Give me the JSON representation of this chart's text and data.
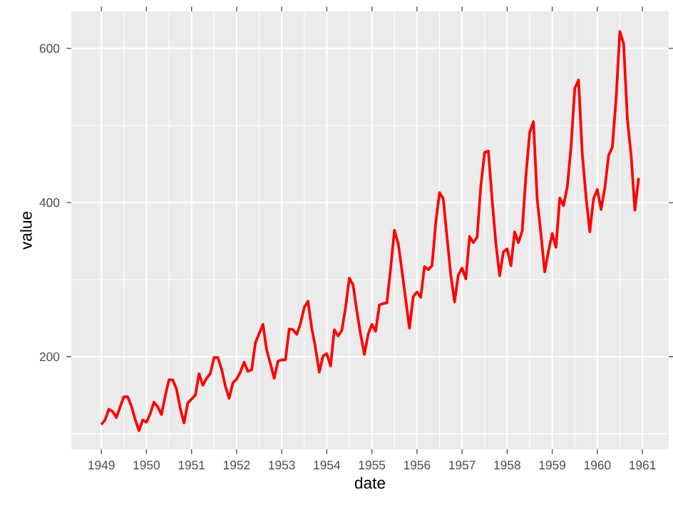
{
  "chart_data": {
    "type": "line",
    "xlabel": "date",
    "ylabel": "value",
    "color": "#ff0000",
    "grid": true,
    "x": [
      "1949-01",
      "1949-02",
      "1949-03",
      "1949-04",
      "1949-05",
      "1949-06",
      "1949-07",
      "1949-08",
      "1949-09",
      "1949-10",
      "1949-11",
      "1949-12",
      "1950-01",
      "1950-02",
      "1950-03",
      "1950-04",
      "1950-05",
      "1950-06",
      "1950-07",
      "1950-08",
      "1950-09",
      "1950-10",
      "1950-11",
      "1950-12",
      "1951-01",
      "1951-02",
      "1951-03",
      "1951-04",
      "1951-05",
      "1951-06",
      "1951-07",
      "1951-08",
      "1951-09",
      "1951-10",
      "1951-11",
      "1951-12",
      "1952-01",
      "1952-02",
      "1952-03",
      "1952-04",
      "1952-05",
      "1952-06",
      "1952-07",
      "1952-08",
      "1952-09",
      "1952-10",
      "1952-11",
      "1952-12",
      "1953-01",
      "1953-02",
      "1953-03",
      "1953-04",
      "1953-05",
      "1953-06",
      "1953-07",
      "1953-08",
      "1953-09",
      "1953-10",
      "1953-11",
      "1953-12",
      "1954-01",
      "1954-02",
      "1954-03",
      "1954-04",
      "1954-05",
      "1954-06",
      "1954-07",
      "1954-08",
      "1954-09",
      "1954-10",
      "1954-11",
      "1954-12",
      "1955-01",
      "1955-02",
      "1955-03",
      "1955-04",
      "1955-05",
      "1955-06",
      "1955-07",
      "1955-08",
      "1955-09",
      "1955-10",
      "1955-11",
      "1955-12",
      "1956-01",
      "1956-02",
      "1956-03",
      "1956-04",
      "1956-05",
      "1956-06",
      "1956-07",
      "1956-08",
      "1956-09",
      "1956-10",
      "1956-11",
      "1956-12",
      "1957-01",
      "1957-02",
      "1957-03",
      "1957-04",
      "1957-05",
      "1957-06",
      "1957-07",
      "1957-08",
      "1957-09",
      "1957-10",
      "1957-11",
      "1957-12",
      "1958-01",
      "1958-02",
      "1958-03",
      "1958-04",
      "1958-05",
      "1958-06",
      "1958-07",
      "1958-08",
      "1958-09",
      "1958-10",
      "1958-11",
      "1958-12",
      "1959-01",
      "1959-02",
      "1959-03",
      "1959-04",
      "1959-05",
      "1959-06",
      "1959-07",
      "1959-08",
      "1959-09",
      "1959-10",
      "1959-11",
      "1959-12",
      "1960-01",
      "1960-02",
      "1960-03",
      "1960-04",
      "1960-05",
      "1960-06",
      "1960-07",
      "1960-08",
      "1960-09",
      "1960-10",
      "1960-11",
      "1960-12"
    ],
    "values": [
      112,
      118,
      132,
      129,
      121,
      135,
      148,
      148,
      136,
      119,
      104,
      118,
      115,
      126,
      141,
      135,
      125,
      149,
      170,
      170,
      158,
      133,
      114,
      140,
      145,
      150,
      178,
      163,
      172,
      178,
      199,
      199,
      184,
      162,
      146,
      166,
      171,
      180,
      193,
      181,
      183,
      218,
      230,
      242,
      209,
      191,
      172,
      194,
      196,
      196,
      236,
      235,
      229,
      243,
      264,
      272,
      237,
      211,
      180,
      201,
      204,
      188,
      235,
      227,
      234,
      264,
      302,
      293,
      259,
      229,
      203,
      229,
      242,
      233,
      267,
      269,
      270,
      315,
      364,
      347,
      312,
      274,
      237,
      278,
      284,
      277,
      317,
      313,
      318,
      374,
      413,
      405,
      355,
      306,
      271,
      306,
      315,
      301,
      356,
      348,
      355,
      422,
      465,
      467,
      404,
      347,
      305,
      336,
      340,
      318,
      362,
      348,
      363,
      435,
      491,
      505,
      404,
      359,
      310,
      337,
      360,
      342,
      406,
      396,
      420,
      472,
      548,
      559,
      463,
      407,
      362,
      405,
      417,
      391,
      419,
      461,
      472,
      535,
      622,
      606,
      508,
      461,
      390,
      432
    ],
    "xlim": [
      "1948-05",
      "1961-08"
    ],
    "ylim": [
      80,
      648
    ],
    "xticks": [
      "1949",
      "1950",
      "1951",
      "1952",
      "1953",
      "1954",
      "1955",
      "1956",
      "1957",
      "1958",
      "1959",
      "1960",
      "1961"
    ],
    "yticks": [
      200,
      400,
      600
    ]
  }
}
